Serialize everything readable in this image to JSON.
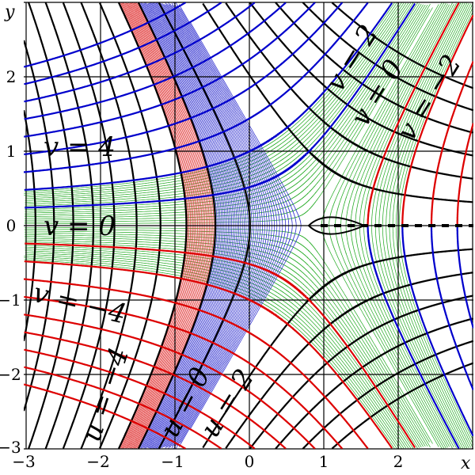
{
  "axes": {
    "x_label": "x",
    "y_label": "y",
    "x_ticks": [
      "−3",
      "−2",
      "−1",
      "0",
      "1",
      "2"
    ],
    "y_ticks": [
      "2",
      "1",
      "0",
      "−1",
      "−2",
      "−3"
    ],
    "range": {
      "x": [
        -3,
        3
      ],
      "y": [
        -3,
        3
      ]
    }
  },
  "level_labels": {
    "v_pos4": "v = 4",
    "v_zero_left": "v = 0",
    "v_neg4": "v = −4",
    "u_neg4": "u = −4",
    "u_zero": "u = 0",
    "u_two": "u = 2",
    "v_two": "v = 2",
    "v_zero_right": "v = 0",
    "v_neg2": "v = −2"
  },
  "families": {
    "u_integer_levels": [
      -9,
      -8,
      -7,
      -6,
      -5,
      -4,
      -3,
      -2,
      -1,
      0,
      1,
      2,
      3,
      4,
      5,
      6,
      7,
      8
    ],
    "v_integer_levels": [
      -9,
      -8,
      -7,
      -6,
      -5,
      -4,
      -3,
      -2,
      -1,
      1,
      2,
      3,
      4,
      5,
      6,
      7,
      8,
      9
    ],
    "u_red_band": [
      -1,
      0
    ],
    "u_blue_band": [
      0,
      2
    ],
    "v_green_band": [
      -2,
      2
    ]
  },
  "colors": {
    "u_lines": "#000000",
    "v_positive": "#0000cc",
    "v_negative": "#dd0000",
    "v_zero": "#aa00aa",
    "green_band": "#22aa22",
    "red_band": "#dd2222",
    "blue_band": "#2222cc",
    "grid": "#000000"
  }
}
